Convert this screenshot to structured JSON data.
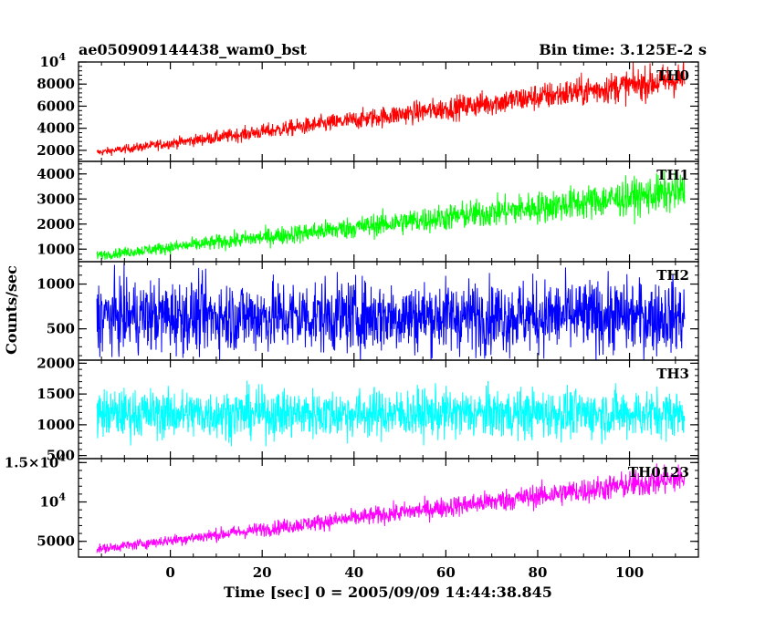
{
  "header": {
    "title": "ae050909144438_wam0_bst",
    "bin_time": "Bin time: 3.125E-2 s"
  },
  "chart_data": {
    "type": "line",
    "title": "ae050909144438_wam0_bst",
    "xlabel": "Time [sec] 0 = 2005/09/09 14:44:38.845",
    "ylabel": "Counts/sec",
    "xlim": [
      -20,
      115
    ],
    "x_ticks": [
      {
        "value": 0,
        "label": "0"
      },
      {
        "value": 20,
        "label": "20"
      },
      {
        "value": 40,
        "label": "40"
      },
      {
        "value": 60,
        "label": "60"
      },
      {
        "value": 80,
        "label": "80"
      },
      {
        "value": 100,
        "label": "100"
      }
    ],
    "x_start": -16,
    "x_end": 112,
    "panels": [
      {
        "name": "TH0",
        "color": "#ff0000",
        "ylim": [
          1000,
          10000
        ],
        "trend": [
          [
            -16,
            1800
          ],
          [
            112,
            8500
          ]
        ],
        "noise": 0.13,
        "yticks": [
          {
            "value": 2000,
            "label": "2000"
          },
          {
            "value": 4000,
            "label": "4000"
          },
          {
            "value": 6000,
            "label": "6000"
          },
          {
            "value": 8000,
            "label": "8000"
          },
          {
            "value": 10000,
            "label": "10",
            "sup": "4"
          }
        ]
      },
      {
        "name": "TH1",
        "color": "#00ff00",
        "ylim": [
          500,
          4500
        ],
        "trend": [
          [
            -16,
            750
          ],
          [
            112,
            3300
          ]
        ],
        "noise": 0.17,
        "yticks": [
          {
            "value": 1000,
            "label": "1000"
          },
          {
            "value": 2000,
            "label": "2000"
          },
          {
            "value": 3000,
            "label": "3000"
          },
          {
            "value": 4000,
            "label": "4000"
          }
        ]
      },
      {
        "name": "TH2",
        "color": "#0000ff",
        "ylim": [
          150,
          1250
        ],
        "trend": [
          [
            -16,
            640
          ],
          [
            112,
            640
          ]
        ],
        "noise": 0.45,
        "yticks": [
          {
            "value": 500,
            "label": "500"
          },
          {
            "value": 1000,
            "label": "1000"
          }
        ]
      },
      {
        "name": "TH3",
        "color": "#00ffff",
        "ylim": [
          450,
          2050
        ],
        "trend": [
          [
            -16,
            1180
          ],
          [
            112,
            1180
          ]
        ],
        "noise": 0.24,
        "yticks": [
          {
            "value": 500,
            "label": "500"
          },
          {
            "value": 1000,
            "label": "1000"
          },
          {
            "value": 1500,
            "label": "1500"
          },
          {
            "value": 2000,
            "label": "2000"
          }
        ]
      },
      {
        "name": "TH0123",
        "color": "#ff00ff",
        "ylim": [
          3000,
          15500
        ],
        "trend": [
          [
            -16,
            4000
          ],
          [
            112,
            13000
          ]
        ],
        "noise": 0.1,
        "yticks": [
          {
            "value": 5000,
            "label": "5000"
          },
          {
            "value": 10000,
            "label": "10",
            "sup": "4"
          },
          {
            "value": 15000,
            "label": "1.5×10",
            "sup": "4"
          }
        ]
      }
    ]
  }
}
